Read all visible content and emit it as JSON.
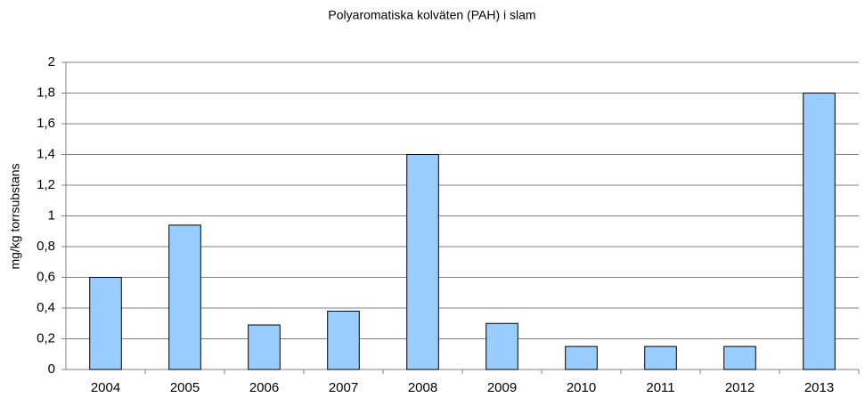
{
  "chart_data": {
    "type": "bar",
    "title": "Polyaromatiska kolväten (PAH) i slam",
    "y_label": "mg/kg torrsubstans",
    "categories": [
      "2004",
      "2005",
      "2006",
      "2007",
      "2008",
      "2009",
      "2010",
      "2011",
      "2012",
      "2013"
    ],
    "values": [
      0.6,
      0.94,
      0.29,
      0.38,
      1.4,
      0.3,
      0.15,
      0.15,
      0.15,
      1.8
    ],
    "color": "#99ccff",
    "ylim": [
      0,
      2
    ],
    "yticks": [
      0,
      {
        "value": 0.2,
        "label": "0,2"
      },
      {
        "value": 0.4,
        "label": "0,4"
      },
      {
        "value": 0.6,
        "label": "0,6"
      },
      {
        "value": 0.8,
        "label": "0,8"
      },
      1,
      {
        "value": 1.2,
        "label": "1,2"
      },
      {
        "value": 1.4,
        "label": "1,4"
      },
      {
        "value": 1.6,
        "label": "1,6"
      },
      {
        "value": 1.8,
        "label": "1,8"
      },
      2
    ],
    "grid": true
  }
}
